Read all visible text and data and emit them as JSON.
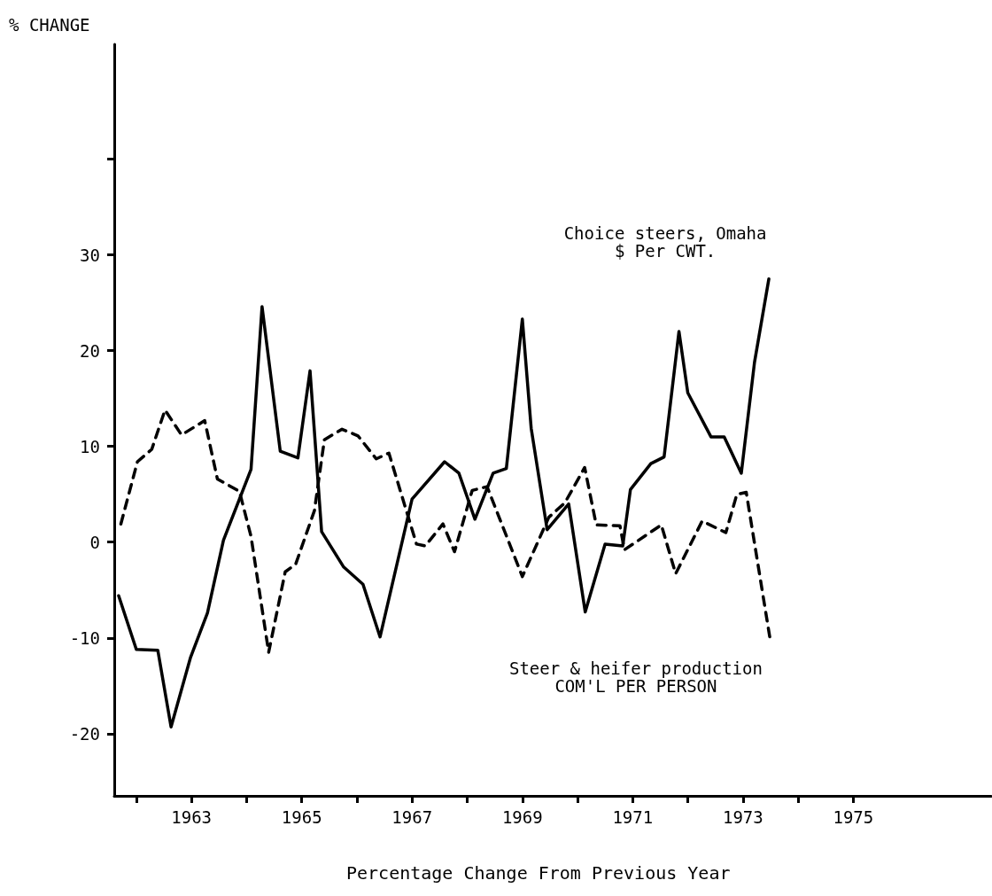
{
  "chart_data": {
    "type": "line",
    "xlabel": "Percentage Change From Previous Year",
    "ylabel": "% CHANGE",
    "xlim": [
      1961.6,
      1977.5
    ],
    "xticks": [
      {
        "value": 1962,
        "label": null
      },
      1963,
      {
        "value": 1964,
        "label": null
      },
      1965,
      {
        "value": 1966,
        "label": null
      },
      1967,
      {
        "value": 1968,
        "label": null
      },
      1969,
      {
        "value": 1970,
        "label": null
      },
      1971,
      {
        "value": 1972,
        "label": null
      },
      1973,
      {
        "value": 1974,
        "label": null
      },
      1975
    ],
    "ylim": [
      -26.5,
      52
    ],
    "yticks": [
      -20,
      -10,
      0,
      10,
      20,
      30,
      {
        "value": 40,
        "label": null
      }
    ],
    "grid": false,
    "legend": false,
    "marker": "none",
    "series": [
      {
        "name": "Choice steers, Omaha\n$ Per CWT.",
        "color": "#000000",
        "line_style": "solid",
        "x": [
          1961.68,
          1962.0,
          1962.39,
          1962.63,
          1962.98,
          1963.29,
          1963.58,
          1964.08,
          1964.28,
          1964.61,
          1964.93,
          1965.15,
          1965.36,
          1965.76,
          1966.11,
          1966.42,
          1967.0,
          1967.59,
          1967.85,
          1968.14,
          1968.47,
          1968.71,
          1969.0,
          1969.16,
          1969.45,
          1969.84,
          1970.14,
          1970.5,
          1970.82,
          1970.96,
          1971.33,
          1971.57,
          1971.84,
          1972.0,
          1972.42,
          1972.66,
          1972.97,
          1973.21,
          1973.47
        ],
        "values": [
          -5.6,
          -11.2,
          -11.3,
          -19.3,
          -12.1,
          -7.4,
          0.2,
          7.6,
          24.6,
          9.5,
          8.8,
          17.9,
          1.1,
          -2.6,
          -4.4,
          -9.9,
          4.5,
          8.4,
          7.2,
          2.4,
          7.2,
          7.7,
          23.3,
          11.9,
          1.3,
          4.0,
          -7.3,
          -0.2,
          -0.4,
          5.5,
          8.2,
          8.9,
          22.0,
          15.6,
          11.0,
          11.0,
          7.2,
          18.8,
          27.5
        ]
      },
      {
        "name": "Steer & heifer production\nCOM'L PER PERSON",
        "color": "#000000",
        "line_style": "dashed",
        "x": [
          1961.72,
          1962.02,
          1962.28,
          1962.52,
          1962.82,
          1963.24,
          1963.47,
          1963.87,
          1964.08,
          1964.4,
          1964.7,
          1964.89,
          1965.23,
          1965.41,
          1965.73,
          1966.02,
          1966.35,
          1966.58,
          1966.88,
          1967.08,
          1967.24,
          1967.56,
          1967.77,
          1968.09,
          1968.36,
          1969.0,
          1969.48,
          1969.77,
          1970.13,
          1970.34,
          1970.77,
          1970.85,
          1971.52,
          1971.78,
          1972.26,
          1972.69,
          1972.89,
          1973.06,
          1973.5
        ],
        "values": [
          1.9,
          8.4,
          9.7,
          13.8,
          11.2,
          12.7,
          6.6,
          5.3,
          0.6,
          -11.5,
          -3.1,
          -2.3,
          3.3,
          10.7,
          11.8,
          11.1,
          8.7,
          9.3,
          3.6,
          -0.2,
          -0.4,
          1.9,
          -1.0,
          5.4,
          5.8,
          -3.6,
          2.6,
          4.1,
          7.8,
          1.8,
          1.7,
          -0.8,
          1.8,
          -3.3,
          2.2,
          1.0,
          5.0,
          5.2,
          -10.4
        ]
      }
    ]
  }
}
